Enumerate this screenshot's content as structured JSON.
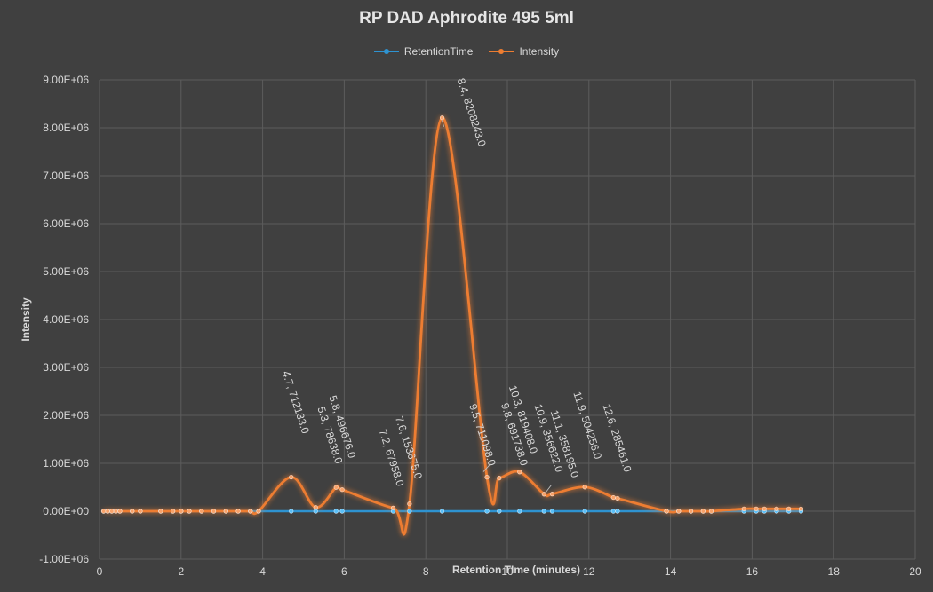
{
  "chart_data": {
    "type": "line",
    "title": "RP DAD Aphrodite 495 5ml",
    "xlabel": "Retention TIme (minutes)",
    "ylabel": "Intensity",
    "xlim": [
      0,
      20
    ],
    "ylim": [
      -1000000,
      9000000
    ],
    "xticks": [
      0,
      2,
      4,
      6,
      8,
      10,
      12,
      14,
      16,
      18,
      20
    ],
    "yticks": [
      -1000000,
      0,
      1000000,
      2000000,
      3000000,
      4000000,
      5000000,
      6000000,
      7000000,
      8000000,
      9000000
    ],
    "ytick_labels": [
      "-1.00E+06",
      "0.00E+00",
      "1.00E+06",
      "2.00E+06",
      "3.00E+06",
      "4.00E+06",
      "5.00E+06",
      "6.00E+06",
      "7.00E+06",
      "8.00E+06",
      "9.00E+06"
    ],
    "grid": true,
    "legend_position": "top-center",
    "series": [
      {
        "name": "RetentionTime",
        "color": "#2e93d1",
        "points": [
          [
            0.1,
            0
          ],
          [
            0.2,
            0
          ],
          [
            0.3,
            0
          ],
          [
            0.4,
            0
          ],
          [
            0.5,
            0
          ],
          [
            0.8,
            0
          ],
          [
            1.0,
            0
          ],
          [
            1.5,
            0
          ],
          [
            1.8,
            0
          ],
          [
            2.0,
            0
          ],
          [
            2.2,
            0
          ],
          [
            2.5,
            0
          ],
          [
            2.8,
            0
          ],
          [
            3.1,
            0
          ],
          [
            3.4,
            0
          ],
          [
            3.7,
            0
          ],
          [
            3.9,
            0
          ],
          [
            4.7,
            0
          ],
          [
            5.3,
            0
          ],
          [
            5.8,
            0
          ],
          [
            5.95,
            0
          ],
          [
            7.2,
            0
          ],
          [
            7.6,
            0
          ],
          [
            8.4,
            0
          ],
          [
            9.5,
            0
          ],
          [
            9.8,
            0
          ],
          [
            10.3,
            0
          ],
          [
            10.9,
            0
          ],
          [
            11.1,
            0
          ],
          [
            11.9,
            0
          ],
          [
            12.6,
            0
          ],
          [
            12.7,
            0
          ],
          [
            13.9,
            0
          ],
          [
            14.2,
            0
          ],
          [
            14.5,
            0
          ],
          [
            14.8,
            0
          ],
          [
            15.0,
            0
          ],
          [
            15.8,
            0
          ],
          [
            16.1,
            0
          ],
          [
            16.3,
            0
          ],
          [
            16.6,
            0
          ],
          [
            16.9,
            0
          ],
          [
            17.2,
            0
          ]
        ]
      },
      {
        "name": "Intensity",
        "color": "#ed7d31",
        "points": [
          [
            0.1,
            0
          ],
          [
            0.2,
            0
          ],
          [
            0.3,
            0
          ],
          [
            0.4,
            0
          ],
          [
            0.5,
            0
          ],
          [
            0.8,
            0
          ],
          [
            1.0,
            0
          ],
          [
            1.5,
            0
          ],
          [
            1.8,
            0
          ],
          [
            2.0,
            0
          ],
          [
            2.2,
            0
          ],
          [
            2.5,
            0
          ],
          [
            2.8,
            0
          ],
          [
            3.1,
            0
          ],
          [
            3.4,
            0
          ],
          [
            3.7,
            0
          ],
          [
            3.9,
            0
          ],
          [
            4.7,
            712133
          ],
          [
            5.3,
            78638
          ],
          [
            5.8,
            496676
          ],
          [
            5.95,
            450000
          ],
          [
            7.2,
            67958
          ],
          [
            7.6,
            153675
          ],
          [
            8.4,
            8208243
          ],
          [
            9.5,
            711098
          ],
          [
            9.8,
            691738
          ],
          [
            10.3,
            819408
          ],
          [
            10.9,
            356622
          ],
          [
            11.1,
            358195
          ],
          [
            11.9,
            504256
          ],
          [
            12.6,
            285461
          ],
          [
            12.7,
            270000
          ],
          [
            13.9,
            0
          ],
          [
            14.2,
            0
          ],
          [
            14.5,
            0
          ],
          [
            14.8,
            0
          ],
          [
            15.0,
            0
          ],
          [
            15.8,
            50000
          ],
          [
            16.1,
            50000
          ],
          [
            16.3,
            50000
          ],
          [
            16.6,
            50000
          ],
          [
            16.9,
            50000
          ],
          [
            17.2,
            50000
          ]
        ]
      }
    ],
    "annotations": [
      {
        "x": 4.7,
        "y": 712133,
        "text": "4.7, 712133.0"
      },
      {
        "x": 5.3,
        "y": 78638,
        "text": "5.3, 78638.0"
      },
      {
        "x": 5.8,
        "y": 496676,
        "text": "5.8, 496676.0"
      },
      {
        "x": 7.2,
        "y": 67958,
        "text": "7.2, 67958.0"
      },
      {
        "x": 7.6,
        "y": 153675,
        "text": "7.6, 153675.0"
      },
      {
        "x": 8.4,
        "y": 8208243,
        "text": "8.4, 8208243.0"
      },
      {
        "x": 9.5,
        "y": 711098,
        "text": "9.5, 711098.0"
      },
      {
        "x": 9.8,
        "y": 691738,
        "text": "9.8, 691738.0"
      },
      {
        "x": 10.3,
        "y": 819408,
        "text": "10.3, 819408.0"
      },
      {
        "x": 10.9,
        "y": 356622,
        "text": "10.9, 356622.0"
      },
      {
        "x": 11.1,
        "y": 358195,
        "text": "11.1, 358195.0"
      },
      {
        "x": 11.9,
        "y": 504256,
        "text": "11.9, 504256.0"
      },
      {
        "x": 12.6,
        "y": 285461,
        "text": "12.6, 285461.0"
      }
    ]
  }
}
